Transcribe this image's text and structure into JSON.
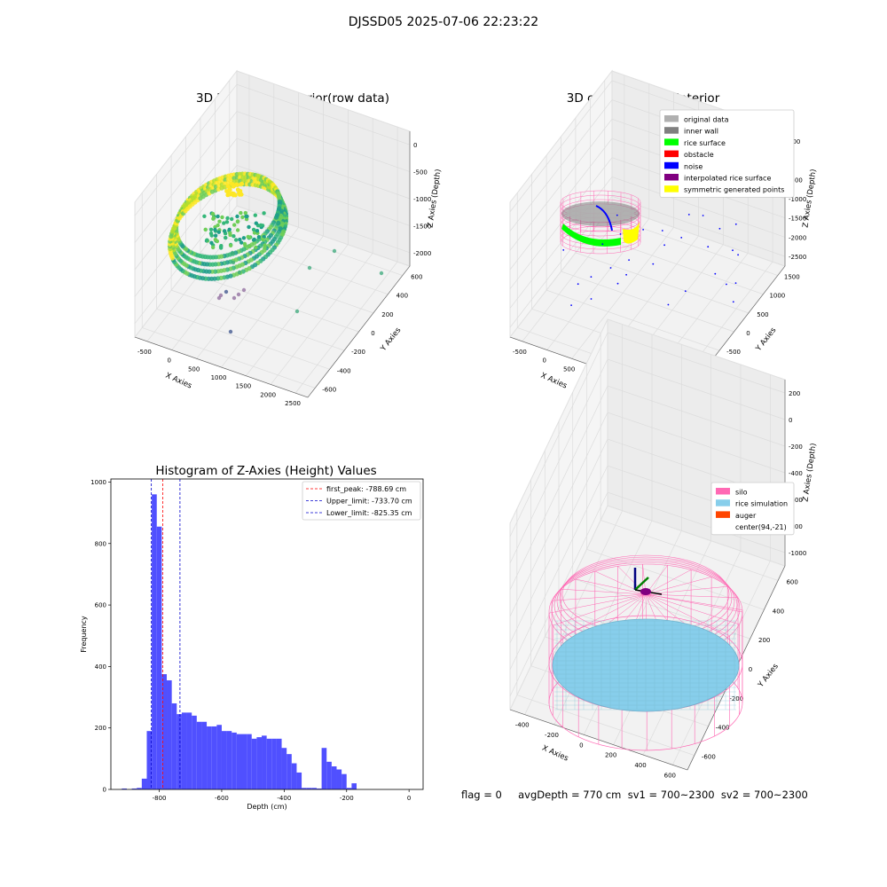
{
  "figure": {
    "suptitle": "DJSSD05 2025-07-06 22:23:22",
    "footer": "flag = 0     avgDepth = 770 cm  sv1 = 700~2300  sv2 = 700~2300"
  },
  "colors": {
    "histogram_bar": "#4d4dff",
    "first_peak_line": "#ff0000",
    "limit_lines": "#0000cc",
    "silo": "#ff69b4",
    "rice_simulation": "#87ceeb",
    "auger": "#ff4500",
    "original_data": "#b0b0b0",
    "inner_wall": "#808080",
    "rice_surface": "#00ff00",
    "obstacle": "#ff0000",
    "noise": "#0000ff",
    "interpolated_rice_surface": "#800080",
    "symmetric_generated_points": "#ffff00"
  },
  "chart_data": [
    {
      "type": "scatter",
      "is_3d": true,
      "title": "3D Plot of Silo Interior(row data)",
      "xlabel": "X Axies",
      "ylabel": "Y Axies",
      "zlabel": "Z Axies (Depth)",
      "x_ticks": [
        "-500",
        "0",
        "500",
        "1000",
        "1500",
        "2000",
        "2500"
      ],
      "y_ticks": [
        "-600",
        "-400",
        "-200",
        "0",
        "200",
        "400",
        "600"
      ],
      "z_ticks": [
        "0",
        "-500",
        "-1000",
        "-1500",
        "-2000"
      ],
      "xlim": [
        -700,
        2700
      ],
      "ylim": [
        -700,
        700
      ],
      "zlim": [
        -2300,
        0
      ],
      "colormap": "viridis"
    },
    {
      "type": "scatter",
      "is_3d": true,
      "title": "3D classify of Silo Interior",
      "xlabel": "X Axies",
      "ylabel": "Y Axies",
      "zlabel": "Z Axies (Depth)",
      "x_ticks": [
        "-500",
        "0",
        "500",
        "1000",
        "1500",
        "2000",
        "2500"
      ],
      "y_ticks": [
        "-1500",
        "-1000",
        "-500",
        "0",
        "500",
        "1000",
        "1500"
      ],
      "z_ticks": [
        "500",
        "0",
        "-500",
        "-1000",
        "-1500",
        "-2000",
        "-2500"
      ],
      "legend": [
        "original data",
        "inner wall",
        "rice surface",
        "obstacle",
        "noise",
        "interpolated rice surface",
        "symmetric generated points"
      ],
      "legend_position": "top-right"
    },
    {
      "type": "bar",
      "title": "Histogram of Z-Axies (Height) Values",
      "xlabel": "Depth (cm)",
      "ylabel": "Frequency",
      "xlim": [
        -955,
        45
      ],
      "ylim": [
        0,
        1010
      ],
      "x_ticks": [
        -800,
        -600,
        -400,
        -200,
        0
      ],
      "y_ticks": [
        0,
        200,
        400,
        600,
        800,
        1000
      ],
      "bin_width": 16,
      "bin_start": -920,
      "values": [
        3,
        0,
        3,
        5,
        35,
        190,
        960,
        855,
        375,
        355,
        280,
        245,
        250,
        250,
        240,
        220,
        220,
        205,
        205,
        210,
        190,
        190,
        185,
        180,
        180,
        180,
        165,
        170,
        175,
        165,
        165,
        165,
        135,
        115,
        85,
        55,
        5,
        5,
        5,
        3,
        135,
        90,
        75,
        65,
        50,
        5,
        20
      ],
      "lines": [
        {
          "label": "first_peak: -788.69 cm",
          "x": -788.69,
          "color": "#ff0000"
        },
        {
          "label": "Upper_limit: -733.70 cm",
          "x": -733.7,
          "color": "#0000cc"
        },
        {
          "label": "Lower_limit: -825.35 cm",
          "x": -825.35,
          "color": "#0000cc"
        }
      ],
      "legend_position": "top-right"
    },
    {
      "type": "scatter",
      "is_3d": true,
      "title": "3D simulation of Silo Interior",
      "xlabel": "X Axies",
      "ylabel": "Y Axies",
      "zlabel": "Z Axies (Depth)",
      "x_ticks": [
        "-400",
        "-200",
        "0",
        "200",
        "400",
        "600"
      ],
      "y_ticks": [
        "-600",
        "-400",
        "-200",
        "0",
        "200",
        "400",
        "600"
      ],
      "z_ticks": [
        "200",
        "0",
        "-200",
        "-400",
        "-600",
        "-800",
        "-1000"
      ],
      "legend": [
        "silo",
        "rice simulation",
        "auger",
        "center(94,-21)"
      ],
      "legend_position": "top-right"
    }
  ]
}
